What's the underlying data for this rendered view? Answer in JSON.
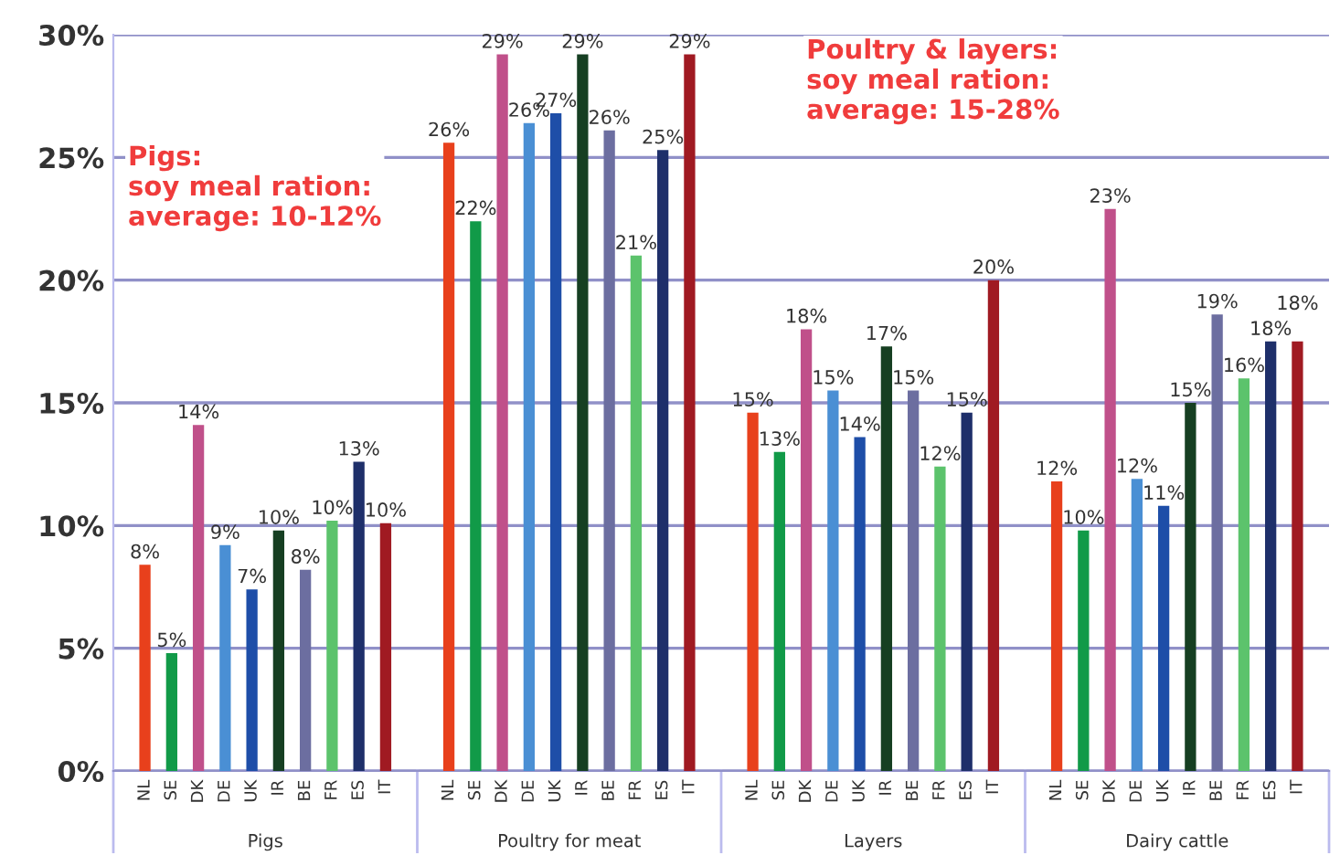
{
  "chart_data": {
    "type": "bar",
    "categories": [
      "Pigs",
      "Poultry for meat",
      "Layers",
      "Dairy cattle"
    ],
    "series": [
      {
        "name": "NL",
        "color": "#e8401c",
        "values": [
          8.4,
          25.6,
          14.6,
          11.8
        ],
        "value_labels": [
          "8%",
          "26%",
          "15%",
          "12%"
        ]
      },
      {
        "name": "SE",
        "color": "#119a48",
        "values": [
          4.8,
          22.4,
          13.0,
          9.8
        ],
        "value_labels": [
          "5%",
          "22%",
          "13%",
          "10%"
        ]
      },
      {
        "name": "DK",
        "color": "#c0508a",
        "values": [
          14.1,
          29.2,
          18.0,
          22.9
        ],
        "value_labels": [
          "14%",
          "29%",
          "18%",
          "23%"
        ]
      },
      {
        "name": "DE",
        "color": "#4a8fd4",
        "values": [
          9.2,
          26.4,
          15.5,
          11.9
        ],
        "value_labels": [
          "9%",
          "26%",
          "15%",
          "12%"
        ]
      },
      {
        "name": "UK",
        "color": "#1e4ea8",
        "values": [
          7.4,
          26.8,
          13.6,
          10.8
        ],
        "value_labels": [
          "7%",
          "27%",
          "14%",
          "11%"
        ]
      },
      {
        "name": "IR",
        "color": "#163f22",
        "values": [
          9.8,
          29.2,
          17.3,
          15.0
        ],
        "value_labels": [
          "10%",
          "29%",
          "17%",
          "15%"
        ]
      },
      {
        "name": "BE",
        "color": "#6c6ea0",
        "values": [
          8.2,
          26.1,
          15.5,
          18.6
        ],
        "value_labels": [
          "8%",
          "26%",
          "15%",
          "19%"
        ]
      },
      {
        "name": "FR",
        "color": "#5cc36c",
        "values": [
          10.2,
          21.0,
          12.4,
          16.0
        ],
        "value_labels": [
          "10%",
          "21%",
          "12%",
          "16%"
        ]
      },
      {
        "name": "ES",
        "color": "#1e2f6a",
        "values": [
          12.6,
          25.3,
          14.6,
          17.5
        ],
        "value_labels": [
          "13%",
          "25%",
          "15%",
          "18%"
        ]
      },
      {
        "name": "IT",
        "color": "#a01a22",
        "values": [
          10.1,
          29.2,
          20.0,
          17.5
        ],
        "value_labels": [
          "10%",
          "29%",
          "20%",
          "18%"
        ]
      }
    ],
    "ylim": [
      0,
      30
    ],
    "yticks": [
      {
        "value": 0,
        "label": "0%"
      },
      {
        "value": 5,
        "label": "5%"
      },
      {
        "value": 10,
        "label": "10%"
      },
      {
        "value": 15,
        "label": "15%"
      },
      {
        "value": 20,
        "label": "20%"
      },
      {
        "value": 25,
        "label": "25%"
      },
      {
        "value": 30,
        "label": "30%"
      }
    ],
    "grid": "y",
    "legend": false,
    "annotations": [
      "Pigs:\nsoy meal ration:\naverage: 10-12%",
      "Poultry & layers:\nsoy meal ration:\naverage: 15-28%"
    ]
  }
}
